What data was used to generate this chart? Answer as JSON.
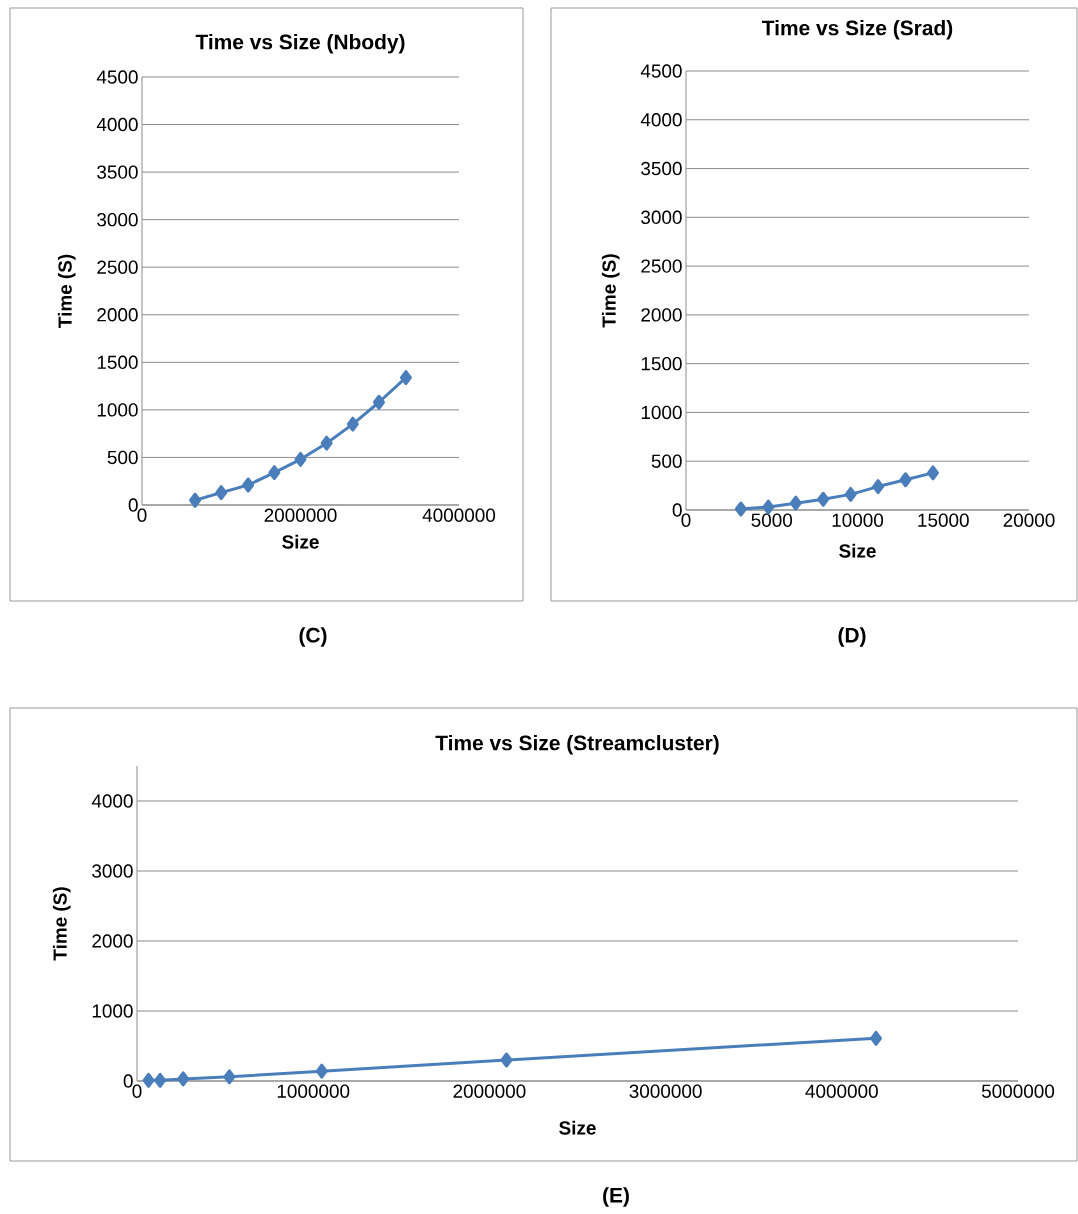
{
  "chart_data": [
    {
      "type": "line",
      "title": "Time vs Size (Nbody)",
      "xlabel": "Size",
      "ylabel": "Time (S)",
      "annotations": [
        "(C)"
      ],
      "x": [
        670000,
        1000000,
        1340000,
        1670000,
        2000000,
        2330000,
        2660000,
        2990000,
        3330000
      ],
      "series": [
        {
          "color": "#4a7ebb",
          "values": [
            50,
            130,
            210,
            340,
            480,
            650,
            850,
            1080,
            1340
          ]
        }
      ],
      "xlim": [
        0,
        4000000
      ],
      "xticks": [
        0,
        2000000,
        4000000
      ],
      "ylim": [
        0,
        4500
      ],
      "yticks": [
        0,
        500,
        1000,
        1500,
        2000,
        2500,
        3000,
        3500,
        4000,
        4500
      ],
      "grid": "y",
      "marker": "diamond",
      "line_style": "solid"
    },
    {
      "type": "line",
      "title": "Time vs Size (Srad)",
      "xlabel": "Size",
      "ylabel": "Time (S)",
      "annotations": [
        "(D)"
      ],
      "x": [
        3200,
        4800,
        6400,
        8000,
        9600,
        11200,
        12800,
        14400
      ],
      "series": [
        {
          "color": "#4a7ebb",
          "values": [
            10,
            30,
            70,
            110,
            160,
            240,
            310,
            380
          ]
        }
      ],
      "xlim": [
        0,
        20000
      ],
      "xticks": [
        0,
        5000,
        10000,
        15000,
        20000
      ],
      "ylim": [
        0,
        4500
      ],
      "yticks": [
        0,
        500,
        1000,
        1500,
        2000,
        2500,
        3000,
        3500,
        4000,
        4500
      ],
      "grid": "y",
      "marker": "diamond",
      "line_style": "solid"
    },
    {
      "type": "line",
      "title": "Time vs Size (Streamcluster)",
      "xlabel": "Size",
      "ylabel": "Time (S)",
      "annotations": [
        "(E)"
      ],
      "x": [
        65536,
        131072,
        262144,
        524288,
        1048576,
        2097152,
        4194304
      ],
      "series": [
        {
          "color": "#4a7ebb",
          "values": [
            10,
            10,
            30,
            60,
            140,
            300,
            610
          ]
        }
      ],
      "xlim": [
        0,
        5000000
      ],
      "xticks": [
        0,
        1000000,
        2000000,
        3000000,
        4000000,
        5000000
      ],
      "ylim": [
        0,
        4500
      ],
      "yticks": [
        0,
        1000,
        2000,
        3000,
        4000
      ],
      "grid": "y",
      "marker": "diamond",
      "line_style": "solid"
    }
  ]
}
